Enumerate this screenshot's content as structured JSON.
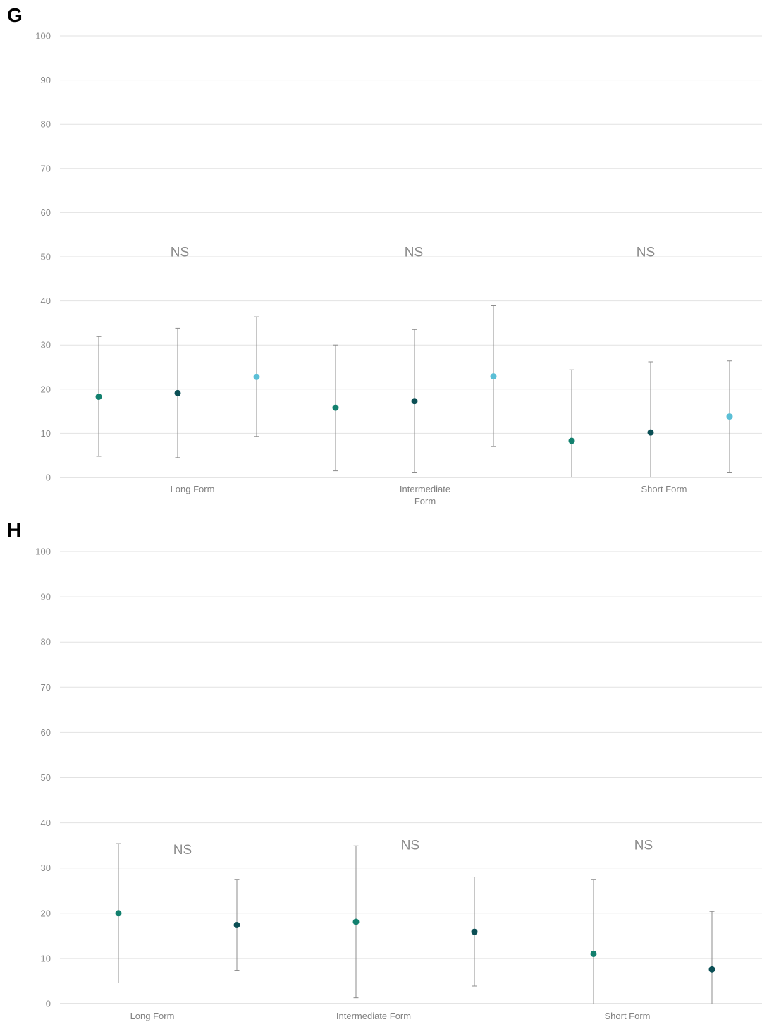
{
  "colors": {
    "series1": "#12806e",
    "series2": "#0b4f55",
    "series3": "#5bbfd6",
    "grid": "#e2e2e2",
    "error_bar": "#8c8c8c",
    "axis_text": "#888888"
  },
  "chart_data": [
    {
      "type": "scatter",
      "panel_label": "G",
      "ylim": [
        0,
        100
      ],
      "yticks": [
        0,
        10,
        20,
        30,
        40,
        50,
        60,
        70,
        80,
        90,
        100
      ],
      "categories": [
        [
          "Long Form"
        ],
        [
          "Intermediate",
          "Form"
        ],
        [
          "Short Form"
        ]
      ],
      "grid": true,
      "series": [
        {
          "values": [
            18.3,
            15.8,
            8.3
          ],
          "err_low": [
            4.8,
            1.5,
            0
          ],
          "err_high": [
            31.9,
            30.0,
            24.4
          ],
          "color": "#12806e"
        },
        {
          "values": [
            19.1,
            17.3,
            10.2
          ],
          "err_low": [
            4.5,
            1.2,
            0
          ],
          "err_high": [
            33.8,
            33.5,
            26.2
          ],
          "color": "#0b4f55"
        },
        {
          "values": [
            22.8,
            22.9,
            13.8
          ],
          "err_low": [
            9.3,
            7.0,
            1.2
          ],
          "err_high": [
            36.4,
            38.9,
            26.4
          ],
          "color": "#5bbfd6"
        }
      ],
      "annotations": [
        {
          "text": "NS",
          "category": 0,
          "y": 51
        },
        {
          "text": "NS",
          "category": 1,
          "y": 51
        },
        {
          "text": "NS",
          "category": 2,
          "y": 51
        }
      ]
    },
    {
      "type": "scatter",
      "panel_label": "H",
      "ylim": [
        0,
        100
      ],
      "yticks": [
        0,
        10,
        20,
        30,
        40,
        50,
        60,
        70,
        80,
        90,
        100
      ],
      "categories": [
        [
          "Long Form"
        ],
        [
          "Intermediate Form"
        ],
        [
          "Short Form"
        ]
      ],
      "grid": true,
      "series": [
        {
          "values": [
            20.0,
            18.1,
            11.0
          ],
          "err_low": [
            4.6,
            1.3,
            0
          ],
          "err_high": [
            35.4,
            34.9,
            27.5
          ],
          "color": "#12806e"
        },
        {
          "values": [
            17.4,
            15.9,
            7.6
          ],
          "err_low": [
            7.4,
            3.9,
            0
          ],
          "err_high": [
            27.5,
            28.0,
            20.4
          ],
          "color": "#0b4f55"
        }
      ],
      "annotations": [
        {
          "text": "NS",
          "category": 0,
          "y": 34
        },
        {
          "text": "NS",
          "category": 1,
          "y": 35
        },
        {
          "text": "NS",
          "category": 2,
          "y": 35
        }
      ]
    }
  ]
}
